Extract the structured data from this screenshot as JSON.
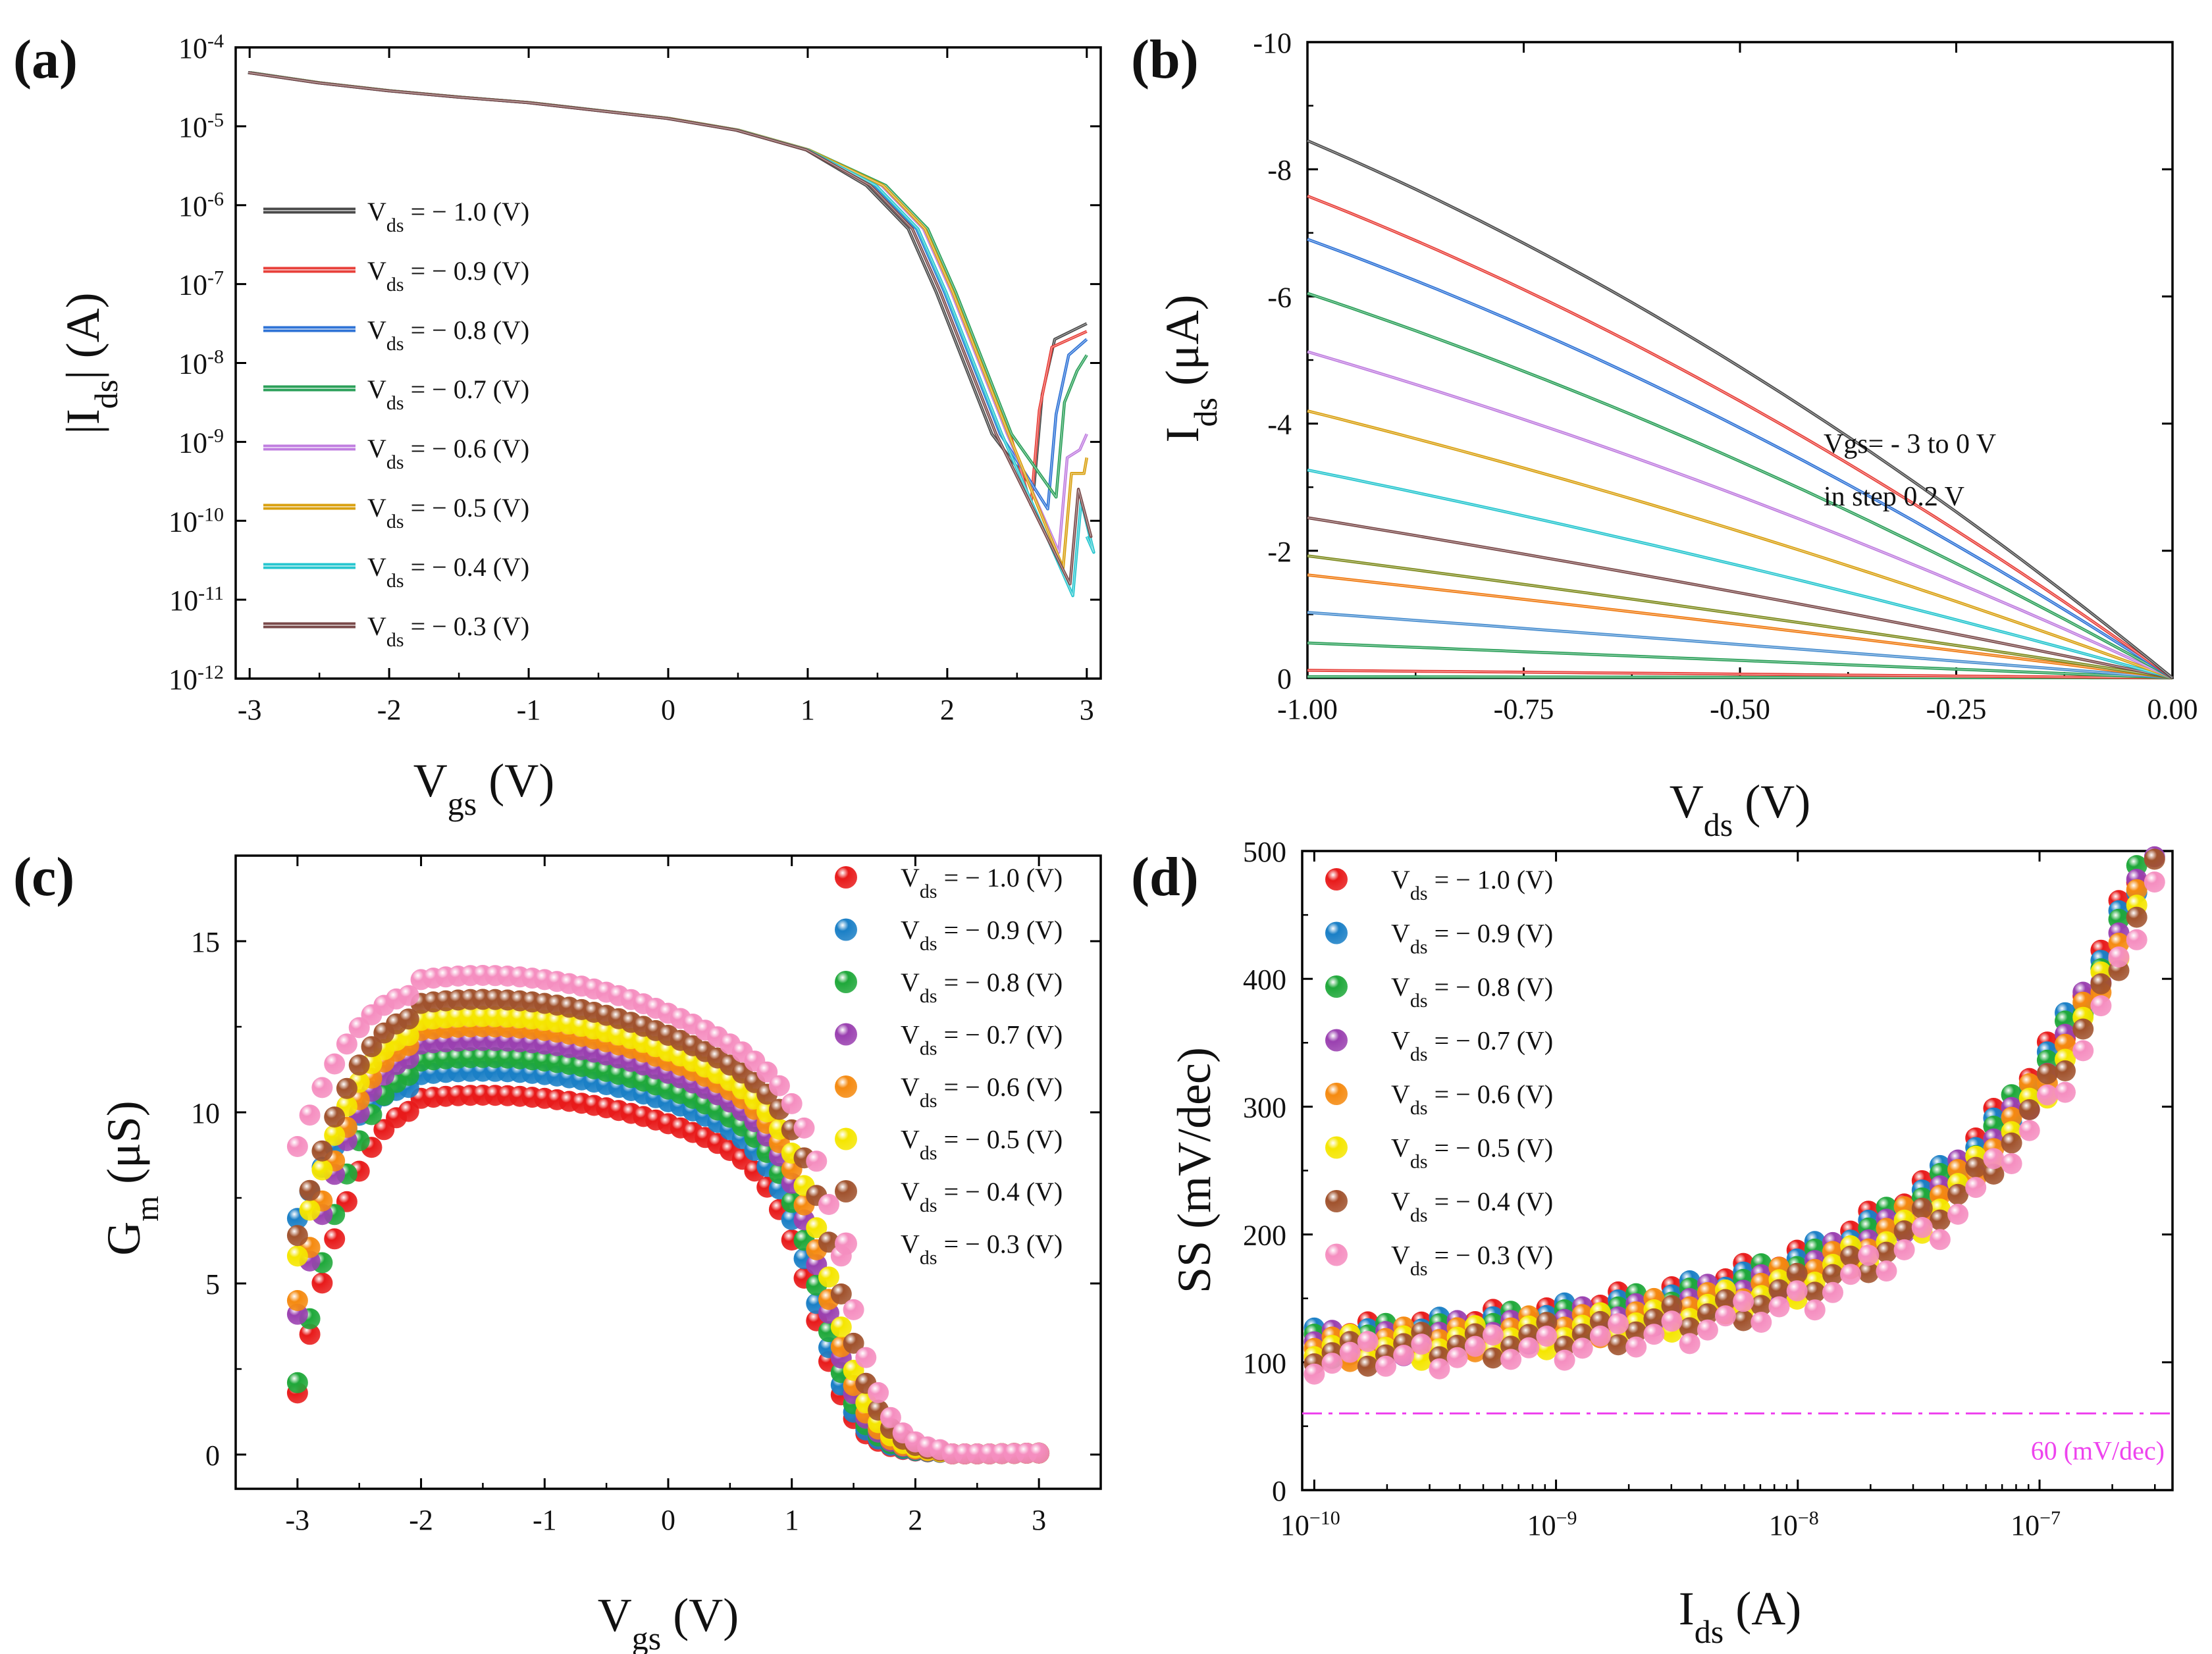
{
  "chart_data": [
    {
      "id": "a",
      "panel_label": "(a)",
      "type": "line",
      "yscale": "log",
      "xlabel": {
        "main": "V",
        "sub": "gs",
        "unit": "  (V)"
      },
      "ylabel": {
        "pre": "|I",
        "sub": "ds",
        "post": "| (A)"
      },
      "xlim": [
        -3.1,
        3.1
      ],
      "ylim_exp": [
        -12,
        -4
      ],
      "xticks": [
        -3,
        -2,
        -1,
        0,
        1,
        2,
        3
      ],
      "xtick_labels": [
        "-3",
        "-2",
        "-1",
        "0",
        "1",
        "2",
        "3"
      ],
      "yticks_exp": [
        -12,
        -11,
        -10,
        -9,
        -8,
        -7,
        -6,
        -5,
        -4
      ],
      "ytick_labels": [
        "10",
        "10",
        "10",
        "10",
        "10",
        "10",
        "10",
        "10",
        "10"
      ],
      "ytick_label_exps": [
        "-12",
        "-11",
        "-10",
        "-9",
        "-8",
        "-7",
        "-6",
        "-5",
        "-4"
      ],
      "legend": {
        "position": "center-left"
      },
      "series": [
        {
          "name": "Vds = − 1.0 (V)",
          "label_pre": "V",
          "label_sub": "ds",
          "label_post": " = − 1.0 (V)",
          "color": "#4a4a4a",
          "min_vgs": 2.62,
          "min_exp": -9.6,
          "end_exp": -7.5,
          "shift": -0.08,
          "points": [
            [
              -3.0,
              -4.32
            ],
            [
              -2.5,
              -4.45
            ],
            [
              -2.0,
              -4.55
            ],
            [
              -1.5,
              -4.63
            ],
            [
              -1.0,
              -4.7
            ],
            [
              -0.5,
              -4.8
            ],
            [
              0.0,
              -4.9
            ],
            [
              0.5,
              -5.05
            ],
            [
              1.0,
              -5.3
            ],
            [
              1.5,
              -5.75
            ],
            [
              1.8,
              -6.3
            ],
            [
              2.0,
              -7.1
            ],
            [
              2.2,
              -8.0
            ],
            [
              2.4,
              -8.9
            ]
          ]
        },
        {
          "name": "Vds = − 0.9 (V)",
          "label_pre": "V",
          "label_sub": "ds",
          "label_post": " = − 0.9 (V)",
          "color": "#e8403a",
          "min_vgs": 2.6,
          "min_exp": -9.8,
          "end_exp": -7.6,
          "shift": 0.05,
          "points": [
            [
              -3.0,
              -4.32
            ],
            [
              -2.5,
              -4.45
            ],
            [
              -2.0,
              -4.55
            ],
            [
              -1.5,
              -4.63
            ],
            [
              -1.0,
              -4.7
            ],
            [
              -0.5,
              -4.8
            ],
            [
              0.0,
              -4.9
            ],
            [
              0.5,
              -5.05
            ],
            [
              1.0,
              -5.3
            ],
            [
              1.5,
              -5.75
            ],
            [
              1.8,
              -6.3
            ],
            [
              2.0,
              -7.1
            ],
            [
              2.2,
              -8.0
            ],
            [
              2.4,
              -8.9
            ]
          ]
        },
        {
          "name": "Vds = − 0.8 (V)",
          "label_pre": "V",
          "label_sub": "ds",
          "label_post": " = − 0.8 (V)",
          "color": "#2f73d6",
          "min_vgs": 2.72,
          "min_exp": -9.85,
          "end_exp": -7.7,
          "shift": -0.02,
          "points": [
            [
              -3.0,
              -4.32
            ],
            [
              -2.5,
              -4.45
            ],
            [
              -2.0,
              -4.55
            ],
            [
              -1.5,
              -4.63
            ],
            [
              -1.0,
              -4.7
            ],
            [
              -0.5,
              -4.8
            ],
            [
              0.0,
              -4.9
            ],
            [
              0.5,
              -5.05
            ],
            [
              1.0,
              -5.3
            ],
            [
              1.5,
              -5.75
            ],
            [
              1.8,
              -6.3
            ],
            [
              2.0,
              -7.1
            ],
            [
              2.2,
              -8.0
            ],
            [
              2.4,
              -8.9
            ]
          ]
        },
        {
          "name": "Vds = − 0.7 (V)",
          "label_pre": "V",
          "label_sub": "ds",
          "label_post": " = − 0.7 (V)",
          "color": "#2ca05a",
          "min_vgs": 2.78,
          "min_exp": -9.7,
          "end_exp": -7.9,
          "shift": 0.06,
          "points": [
            [
              -3.0,
              -4.32
            ],
            [
              -2.5,
              -4.45
            ],
            [
              -2.0,
              -4.55
            ],
            [
              -1.5,
              -4.63
            ],
            [
              -1.0,
              -4.7
            ],
            [
              -0.5,
              -4.8
            ],
            [
              0.0,
              -4.9
            ],
            [
              0.5,
              -5.05
            ],
            [
              1.0,
              -5.3
            ],
            [
              1.5,
              -5.75
            ],
            [
              1.8,
              -6.3
            ],
            [
              2.0,
              -7.1
            ],
            [
              2.2,
              -8.0
            ],
            [
              2.4,
              -8.9
            ]
          ]
        },
        {
          "name": "Vds = − 0.6 (V)",
          "label_pre": "V",
          "label_sub": "ds",
          "label_post": " = − 0.6 (V)",
          "color": "#c07ee0",
          "min_vgs": 2.8,
          "min_exp": -10.4,
          "end_exp": -8.9,
          "shift": 0.03,
          "points": [
            [
              -3.0,
              -4.32
            ],
            [
              -2.5,
              -4.45
            ],
            [
              -2.0,
              -4.55
            ],
            [
              -1.5,
              -4.63
            ],
            [
              -1.0,
              -4.7
            ],
            [
              -0.5,
              -4.8
            ],
            [
              0.0,
              -4.9
            ],
            [
              0.5,
              -5.05
            ],
            [
              1.0,
              -5.3
            ],
            [
              1.5,
              -5.75
            ],
            [
              1.8,
              -6.3
            ],
            [
              2.0,
              -7.1
            ],
            [
              2.2,
              -8.0
            ],
            [
              2.4,
              -8.9
            ]
          ]
        },
        {
          "name": "Vds = − 0.5 (V)",
          "label_pre": "V",
          "label_sub": "ds",
          "label_post": " = − 0.5 (V)",
          "color": "#d9a010",
          "min_vgs": 2.83,
          "min_exp": -10.6,
          "end_exp": -9.2,
          "shift": 0.04,
          "points": [
            [
              -3.0,
              -4.32
            ],
            [
              -2.5,
              -4.45
            ],
            [
              -2.0,
              -4.55
            ],
            [
              -1.5,
              -4.63
            ],
            [
              -1.0,
              -4.7
            ],
            [
              -0.5,
              -4.8
            ],
            [
              0.0,
              -4.9
            ],
            [
              0.5,
              -5.05
            ],
            [
              1.0,
              -5.3
            ],
            [
              1.5,
              -5.75
            ],
            [
              1.8,
              -6.3
            ],
            [
              2.0,
              -7.1
            ],
            [
              2.2,
              -8.0
            ],
            [
              2.4,
              -8.9
            ]
          ]
        },
        {
          "name": "Vds = − 0.4 (V)",
          "label_pre": "V",
          "label_sub": "ds",
          "label_post": " = − 0.4 (V)",
          "color": "#27c6cf",
          "min_vgs": 2.9,
          "min_exp": -10.95,
          "end_exp": -10.2,
          "shift": -0.01,
          "points": [
            [
              -3.0,
              -4.32
            ],
            [
              -2.5,
              -4.45
            ],
            [
              -2.0,
              -4.55
            ],
            [
              -1.5,
              -4.63
            ],
            [
              -1.0,
              -4.7
            ],
            [
              -0.5,
              -4.8
            ],
            [
              0.0,
              -4.9
            ],
            [
              0.5,
              -5.05
            ],
            [
              1.0,
              -5.3
            ],
            [
              1.5,
              -5.75
            ],
            [
              1.8,
              -6.3
            ],
            [
              2.0,
              -7.1
            ],
            [
              2.2,
              -8.0
            ],
            [
              2.4,
              -8.9
            ]
          ]
        },
        {
          "name": "Vds = − 0.3 (V)",
          "label_pre": "V",
          "label_sub": "ds",
          "label_post": " = − 0.3 (V)",
          "color": "#7a4a4a",
          "min_vgs": 2.88,
          "min_exp": -10.8,
          "end_exp": -10.0,
          "shift": -0.05,
          "points": [
            [
              -3.0,
              -4.32
            ],
            [
              -2.5,
              -4.45
            ],
            [
              -2.0,
              -4.55
            ],
            [
              -1.5,
              -4.63
            ],
            [
              -1.0,
              -4.7
            ],
            [
              -0.5,
              -4.8
            ],
            [
              0.0,
              -4.9
            ],
            [
              0.5,
              -5.05
            ],
            [
              1.0,
              -5.3
            ],
            [
              1.5,
              -5.75
            ],
            [
              1.8,
              -6.3
            ],
            [
              2.0,
              -7.1
            ],
            [
              2.2,
              -8.0
            ],
            [
              2.4,
              -8.9
            ]
          ]
        }
      ]
    },
    {
      "id": "b",
      "panel_label": "(b)",
      "type": "line",
      "xlabel": {
        "main": "V",
        "sub": "ds",
        "unit": " (V)"
      },
      "ylabel": {
        "pre": "I",
        "sub": "ds",
        "post": " (μA)"
      },
      "xlim": [
        -1.0,
        0.0
      ],
      "ylim": [
        -10,
        0
      ],
      "xticks": [
        -1.0,
        -0.75,
        -0.5,
        -0.25,
        0.0
      ],
      "xtick_labels": [
        "-1.00",
        "-0.75",
        "-0.50",
        "-0.25",
        "0.00"
      ],
      "yticks": [
        0,
        -2,
        -4,
        -6,
        -8,
        -10
      ],
      "ytick_labels": [
        "0",
        "-2",
        "-4",
        "-6",
        "-8",
        "-10"
      ],
      "annotation": [
        "Vgs= - 3 to 0 V",
        "in step 0.2 V"
      ],
      "series": [
        {
          "vgs": 0.0,
          "color": "#2ca05a",
          "end": -0.02,
          "curve": 0.0
        },
        {
          "vgs": -0.2,
          "color": "#e8403a",
          "end": -0.12,
          "curve": 0.0
        },
        {
          "vgs": -0.4,
          "color": "#2ca05a",
          "end": -0.55,
          "curve": 0.0
        },
        {
          "vgs": -0.6,
          "color": "#4a8fd0",
          "end": -1.03,
          "curve": 0.1
        },
        {
          "vgs": -0.8,
          "color": "#f07a10",
          "end": -1.62,
          "curve": 0.2
        },
        {
          "vgs": -1.0,
          "color": "#7d8a1c",
          "end": -1.92,
          "curve": 0.25
        },
        {
          "vgs": -1.2,
          "color": "#7a4a4a",
          "end": -2.52,
          "curve": 0.35
        },
        {
          "vgs": -1.4,
          "color": "#27c6cf",
          "end": -3.27,
          "curve": 0.45
        },
        {
          "vgs": -1.6,
          "color": "#d9a010",
          "end": -4.2,
          "curve": 0.55
        },
        {
          "vgs": -1.8,
          "color": "#c07ee0",
          "end": -5.13,
          "curve": 0.65
        },
        {
          "vgs": -2.0,
          "color": "#2ca05a",
          "end": -6.05,
          "curve": 0.72
        },
        {
          "vgs": -2.2,
          "color": "#2f73d6",
          "end": -6.9,
          "curve": 0.8
        },
        {
          "vgs": -2.4,
          "color": "#e8403a",
          "end": -7.58,
          "curve": 0.85
        },
        {
          "vgs": -2.6,
          "color": "#4a4a4a",
          "end": -8.45,
          "curve": 0.9
        }
      ]
    },
    {
      "id": "c",
      "panel_label": "(c)",
      "type": "scatter",
      "xlabel": {
        "main": "V",
        "sub": "gs",
        "unit": " (V)"
      },
      "ylabel": {
        "pre": "G",
        "sub": "m",
        "post": " (μS)"
      },
      "xlim": [
        -3.5,
        3.5
      ],
      "ylim": [
        -1,
        17.5
      ],
      "xticks": [
        -3,
        -2,
        -1,
        0,
        1,
        2,
        3
      ],
      "xtick_labels": [
        "-3",
        "-2",
        "-1",
        "0",
        "1",
        "2",
        "3"
      ],
      "yticks": [
        0,
        5,
        10,
        15
      ],
      "ytick_labels": [
        "0",
        "5",
        "10",
        "15"
      ],
      "legend": {
        "position": "top-right"
      },
      "series": [
        {
          "name": "Vds = − 1.0 (V)",
          "label_pre": "V",
          "label_sub": "ds",
          "label_post": " = − 1.0 (V)",
          "color": "#e81a1a",
          "peak": 10.5,
          "start": 1.8,
          "fall": 1.2
        },
        {
          "name": "Vds = − 0.9 (V)",
          "label_pre": "V",
          "label_sub": "ds",
          "label_post": " = − 0.9 (V)",
          "color": "#1a7fc6",
          "peak": 11.2,
          "start": 6.9,
          "fall": 1.22
        },
        {
          "name": "Vds = − 0.8 (V)",
          "label_pre": "V",
          "label_sub": "ds",
          "label_post": " = − 0.8 (V)",
          "color": "#1fa83a",
          "peak": 11.6,
          "start": 2.1,
          "fall": 1.25
        },
        {
          "name": "Vds = − 0.7 (V)",
          "label_pre": "V",
          "label_sub": "ds",
          "label_post": " = − 0.7 (V)",
          "color": "#9a40b0",
          "peak": 12.1,
          "start": 4.1,
          "fall": 1.28
        },
        {
          "name": "Vds = − 0.6 (V)",
          "label_pre": "V",
          "label_sub": "ds",
          "label_post": " = − 0.6 (V)",
          "color": "#f58a10",
          "peak": 12.5,
          "start": 4.5,
          "fall": 1.3
        },
        {
          "name": "Vds = − 0.5 (V)",
          "label_pre": "V",
          "label_sub": "ds",
          "label_post": " = − 0.5 (V)",
          "color": "#f5e600",
          "peak": 12.8,
          "start": 5.8,
          "fall": 1.34
        },
        {
          "name": "Vds = − 0.4 (V)",
          "label_pre": "V",
          "label_sub": "ds",
          "label_post": " = − 0.4 (V)",
          "color": "#a0522d",
          "peak": 13.3,
          "start": 6.4,
          "fall": 1.4
        },
        {
          "name": "Vds = − 0.3 (V)",
          "label_pre": "V",
          "label_sub": "ds",
          "label_post": " = − 0.3 (V)",
          "color": "#f58ec0",
          "peak": 14.0,
          "start": 9.0,
          "fall": 1.46
        }
      ]
    },
    {
      "id": "d",
      "panel_label": "(d)",
      "type": "scatter",
      "xscale": "log",
      "xlabel": {
        "main": "I",
        "sub": "ds",
        "unit": " (A)"
      },
      "ylabel": {
        "pre": "SS (mV/dec)",
        "sub": "",
        "post": ""
      },
      "xlim_exp": [
        -10.05,
        -6.45
      ],
      "ylim": [
        0,
        500
      ],
      "xticks_exp": [
        -10,
        -9,
        -8,
        -7
      ],
      "xtick_labels": [
        "10",
        "10",
        "10",
        "10"
      ],
      "xtick_label_exps": [
        "−10",
        "−9",
        "−8",
        "−7"
      ],
      "yticks": [
        0,
        100,
        200,
        300,
        400,
        500
      ],
      "ytick_labels": [
        "0",
        "100",
        "200",
        "300",
        "400",
        "500"
      ],
      "reference_line": {
        "value": 60,
        "label": "60 (mV/dec)",
        "color": "#ee44ee"
      },
      "legend": {
        "position": "top-left"
      },
      "series": [
        {
          "name": "Vds = − 1.0 (V)",
          "label_pre": "V",
          "label_sub": "ds",
          "label_post": " = − 1.0 (V)",
          "color": "#e81a1a",
          "offset": 15
        },
        {
          "name": "Vds = − 0.9 (V)",
          "label_pre": "V",
          "label_sub": "ds",
          "label_post": " = − 0.9 (V)",
          "color": "#1a7fc6",
          "offset": 12
        },
        {
          "name": "Vds = − 0.8 (V)",
          "label_pre": "V",
          "label_sub": "ds",
          "label_post": " = − 0.8 (V)",
          "color": "#1fa83a",
          "offset": 10
        },
        {
          "name": "Vds = − 0.7 (V)",
          "label_pre": "V",
          "label_sub": "ds",
          "label_post": " = − 0.7 (V)",
          "color": "#9a40b0",
          "offset": 5
        },
        {
          "name": "Vds = − 0.6 (V)",
          "label_pre": "V",
          "label_sub": "ds",
          "label_post": " = − 0.6 (V)",
          "color": "#f58a10",
          "offset": 2
        },
        {
          "name": "Vds = − 0.5 (V)",
          "label_pre": "V",
          "label_sub": "ds",
          "label_post": " = − 0.5 (V)",
          "color": "#f5e600",
          "offset": -4
        },
        {
          "name": "Vds = − 0.4 (V)",
          "label_pre": "V",
          "label_sub": "ds",
          "label_post": " = − 0.4 (V)",
          "color": "#a0522d",
          "offset": -8
        },
        {
          "name": "Vds = − 0.3 (V)",
          "label_pre": "V",
          "label_sub": "ds",
          "label_post": " = − 0.3 (V)",
          "color": "#f58ec0",
          "offset": -18
        }
      ]
    }
  ]
}
